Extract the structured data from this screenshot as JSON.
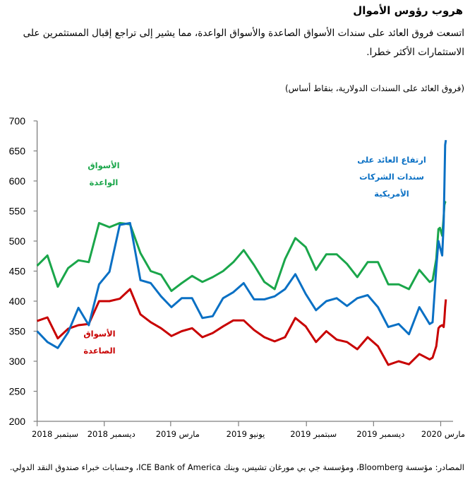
{
  "title": "هروب رؤوس الأموال",
  "subtitle": "اتسعت فروق العائد على سندات الأسواق الصاعدة والأسواق الواعدة، مما يشير إلى تراجع إقبال المستثمرين على الاستثمارات الأكثر خطرا.",
  "unit_label": "(فروق العائد على السندات الدولارية، بنقاط أساس)",
  "source": "المصادر: مؤسسة Bloomberg، ومؤسسة جي بي مورغان تشيس، وبنك ICE Bank of America، وحسابات خبراء صندوق النقد الدولي.",
  "chart_data": {
    "type": "line",
    "title": "",
    "xlabel": "",
    "ylabel": "",
    "ylim": [
      200,
      700
    ],
    "yticks": [
      "200",
      "250",
      "300",
      "350",
      "400",
      "450",
      "500",
      "550",
      "600",
      "650",
      "700"
    ],
    "xticks": [
      {
        "date": "2018-09-01",
        "label": "سبتمبر 2018"
      },
      {
        "date": "2018-12-01",
        "label": "ديسمبر 2018"
      },
      {
        "date": "2019-03-01",
        "label": "مارس 2019"
      },
      {
        "date": "2019-06-01",
        "label": "يونيو 2019"
      },
      {
        "date": "2019-09-01",
        "label": "سبتمبر 2019"
      },
      {
        "date": "2019-12-01",
        "label": "ديسمبر 2019"
      },
      {
        "date": "2020-03-01",
        "label": "مارس 2020"
      }
    ],
    "grid": false,
    "legend": "none",
    "x": [
      "2018-09-01",
      "2018-09-15",
      "2018-09-29",
      "2018-10-13",
      "2018-10-27",
      "2018-11-10",
      "2018-11-24",
      "2018-12-08",
      "2018-12-22",
      "2019-01-05",
      "2019-01-19",
      "2019-02-02",
      "2019-02-16",
      "2019-03-02",
      "2019-03-16",
      "2019-03-30",
      "2019-04-13",
      "2019-04-27",
      "2019-05-11",
      "2019-05-25",
      "2019-06-08",
      "2019-06-22",
      "2019-07-06",
      "2019-07-20",
      "2019-08-03",
      "2019-08-17",
      "2019-08-31",
      "2019-09-14",
      "2019-09-28",
      "2019-10-12",
      "2019-10-26",
      "2019-11-09",
      "2019-11-23",
      "2019-12-07",
      "2019-12-21",
      "2020-01-04",
      "2020-01-18",
      "2020-02-01",
      "2020-02-15",
      "2020-02-19",
      "2020-02-24",
      "2020-02-27",
      "2020-02-29",
      "2020-03-03",
      "2020-03-05",
      "2020-03-06",
      "2020-03-07",
      "2020-03-08"
    ],
    "series": [
      {
        "annotation": "الأسواق الواعدة",
        "annotation_lines": [
          "الأسواق",
          "الواعدة"
        ],
        "color": "#1aa64a",
        "values": [
          459,
          476,
          424,
          455,
          468,
          465,
          530,
          523,
          530,
          528,
          480,
          450,
          444,
          417,
          430,
          442,
          432,
          440,
          450,
          465,
          485,
          460,
          432,
          420,
          470,
          505,
          490,
          452,
          478,
          478,
          462,
          440,
          465,
          465,
          428,
          428,
          420,
          452,
          432,
          435,
          470,
          520,
          522,
          509,
          540,
          560,
          565,
          566
        ]
      },
      {
        "annotation": "ارتفاع العائد على سندات الشركات الأمريكية",
        "annotation_lines": [
          "ارتفاع العائد على",
          "سندات الشركات",
          "الأمريكية"
        ],
        "color": "#0a70c4",
        "values": [
          350,
          332,
          322,
          348,
          389,
          360,
          428,
          449,
          527,
          530,
          435,
          430,
          408,
          390,
          405,
          405,
          372,
          375,
          405,
          415,
          430,
          403,
          403,
          408,
          420,
          445,
          412,
          385,
          400,
          405,
          392,
          405,
          410,
          390,
          357,
          362,
          345,
          390,
          362,
          365,
          455,
          500,
          490,
          476,
          530,
          590,
          660,
          668
        ]
      },
      {
        "annotation": "الأسواق الصاعدة",
        "annotation_lines": [
          "الأسواق",
          "الصاعدة"
        ],
        "color": "#c80000",
        "values": [
          367,
          373,
          338,
          354,
          360,
          362,
          400,
          400,
          404,
          420,
          378,
          365,
          355,
          342,
          350,
          355,
          340,
          347,
          358,
          368,
          368,
          352,
          340,
          333,
          340,
          372,
          358,
          332,
          350,
          336,
          332,
          320,
          340,
          325,
          294,
          300,
          295,
          312,
          303,
          306,
          325,
          355,
          358,
          360,
          357,
          370,
          390,
          403
        ]
      }
    ]
  }
}
